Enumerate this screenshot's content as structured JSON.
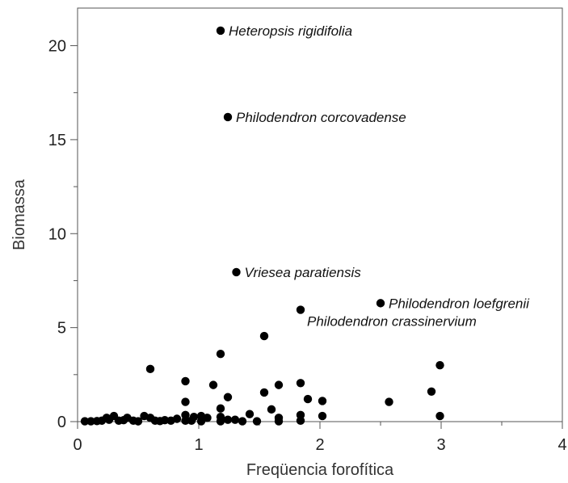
{
  "chart_data": {
    "type": "scatter",
    "title": "",
    "xlabel": "Freqüencia forofítica",
    "ylabel": "Biomassa",
    "xlim": [
      0,
      4
    ],
    "ylim": [
      0,
      22
    ],
    "grid": false,
    "legend": "none",
    "x_ticks": [
      "0",
      "1",
      "2",
      "3",
      "4"
    ],
    "y_ticks": [
      "0",
      "5",
      "10",
      "15",
      "20"
    ],
    "marker_color": "#000000",
    "annotations": [
      {
        "text": "Heteropsis rigidifolia",
        "x": 1.18,
        "y": 20.8
      },
      {
        "text": "Philodendron corcovadense",
        "x": 1.24,
        "y": 16.2
      },
      {
        "text": "Vriesea paratiensis",
        "x": 1.31,
        "y": 7.95
      },
      {
        "text": "Philodendron loefgrenii",
        "x": 2.5,
        "y": 6.3
      },
      {
        "text": "Philodendron crassinervium",
        "x": 1.84,
        "y": 5.95
      }
    ],
    "points": [
      {
        "x": 1.18,
        "y": 20.8
      },
      {
        "x": 1.24,
        "y": 16.2
      },
      {
        "x": 1.31,
        "y": 7.95
      },
      {
        "x": 2.5,
        "y": 6.3
      },
      {
        "x": 1.84,
        "y": 5.95
      },
      {
        "x": 1.54,
        "y": 4.55
      },
      {
        "x": 1.18,
        "y": 3.6
      },
      {
        "x": 0.6,
        "y": 2.8
      },
      {
        "x": 2.99,
        "y": 3.0
      },
      {
        "x": 0.89,
        "y": 2.15
      },
      {
        "x": 1.12,
        "y": 1.95
      },
      {
        "x": 1.66,
        "y": 1.95
      },
      {
        "x": 1.84,
        "y": 2.05
      },
      {
        "x": 2.92,
        "y": 1.6
      },
      {
        "x": 1.54,
        "y": 1.55
      },
      {
        "x": 1.24,
        "y": 1.3
      },
      {
        "x": 1.9,
        "y": 1.2
      },
      {
        "x": 2.02,
        "y": 1.1
      },
      {
        "x": 2.57,
        "y": 1.05
      },
      {
        "x": 0.89,
        "y": 1.05
      },
      {
        "x": 1.6,
        "y": 0.65
      },
      {
        "x": 1.18,
        "y": 0.7
      },
      {
        "x": 1.42,
        "y": 0.4
      },
      {
        "x": 1.84,
        "y": 0.35
      },
      {
        "x": 0.89,
        "y": 0.35
      },
      {
        "x": 2.02,
        "y": 0.3
      },
      {
        "x": 2.99,
        "y": 0.3
      },
      {
        "x": 1.18,
        "y": 0.25
      },
      {
        "x": 0.55,
        "y": 0.3
      },
      {
        "x": 0.3,
        "y": 0.3
      },
      {
        "x": 0.96,
        "y": 0.25
      },
      {
        "x": 1.02,
        "y": 0.3
      },
      {
        "x": 1.66,
        "y": 0.2
      },
      {
        "x": 0.24,
        "y": 0.2
      },
      {
        "x": 0.41,
        "y": 0.2
      },
      {
        "x": 0.6,
        "y": 0.2
      },
      {
        "x": 0.82,
        "y": 0.15
      },
      {
        "x": 1.07,
        "y": 0.2
      },
      {
        "x": 1.3,
        "y": 0.1
      },
      {
        "x": 1.24,
        "y": 0.1
      },
      {
        "x": 0.06,
        "y": 0.02
      },
      {
        "x": 0.11,
        "y": 0.02
      },
      {
        "x": 0.16,
        "y": 0.03
      },
      {
        "x": 0.2,
        "y": 0.05
      },
      {
        "x": 0.26,
        "y": 0.1
      },
      {
        "x": 0.34,
        "y": 0.05
      },
      {
        "x": 0.38,
        "y": 0.08
      },
      {
        "x": 0.46,
        "y": 0.05
      },
      {
        "x": 0.5,
        "y": 0.02
      },
      {
        "x": 0.64,
        "y": 0.05
      },
      {
        "x": 0.68,
        "y": 0.03
      },
      {
        "x": 0.72,
        "y": 0.08
      },
      {
        "x": 0.77,
        "y": 0.05
      },
      {
        "x": 0.89,
        "y": 0.05
      },
      {
        "x": 0.94,
        "y": 0.05
      },
      {
        "x": 1.02,
        "y": 0.02
      },
      {
        "x": 1.18,
        "y": 0.02
      },
      {
        "x": 1.36,
        "y": 0.02
      },
      {
        "x": 1.48,
        "y": 0.02
      },
      {
        "x": 1.66,
        "y": 0.02
      },
      {
        "x": 1.84,
        "y": 0.05
      }
    ]
  }
}
